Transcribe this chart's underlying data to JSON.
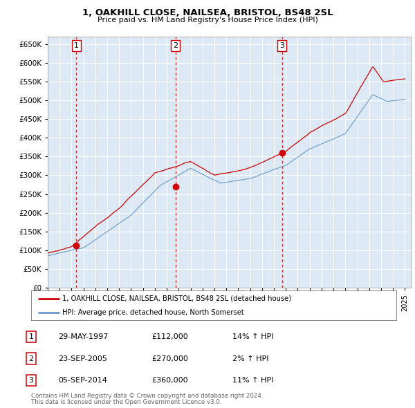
{
  "title1": "1, OAKHILL CLOSE, NAILSEA, BRISTOL, BS48 2SL",
  "title2": "Price paid vs. HM Land Registry's House Price Index (HPI)",
  "ylim": [
    0,
    670000
  ],
  "yticks": [
    0,
    50000,
    100000,
    150000,
    200000,
    250000,
    300000,
    350000,
    400000,
    450000,
    500000,
    550000,
    600000,
    650000
  ],
  "xlim_start": 1995.0,
  "xlim_end": 2025.5,
  "bg_color": "#dce9f5",
  "sale1_x": 1997.41,
  "sale1_y": 112000,
  "sale2_x": 2005.73,
  "sale2_y": 270000,
  "sale3_x": 2014.68,
  "sale3_y": 360000,
  "legend_line1": "1, OAKHILL CLOSE, NAILSEA, BRISTOL, BS48 2SL (detached house)",
  "legend_line2": "HPI: Average price, detached house, North Somerset",
  "table_row1_num": "1",
  "table_row1_date": "29-MAY-1997",
  "table_row1_price": "£112,000",
  "table_row1_hpi": "14% ↑ HPI",
  "table_row2_num": "2",
  "table_row2_date": "23-SEP-2005",
  "table_row2_price": "£270,000",
  "table_row2_hpi": "2% ↑ HPI",
  "table_row3_num": "3",
  "table_row3_date": "05-SEP-2014",
  "table_row3_price": "£360,000",
  "table_row3_hpi": "11% ↑ HPI",
  "footer1": "Contains HM Land Registry data © Crown copyright and database right 2024.",
  "footer2": "This data is licensed under the Open Government Licence v3.0.",
  "red_color": "#cc0000",
  "blue_color": "#6699cc"
}
